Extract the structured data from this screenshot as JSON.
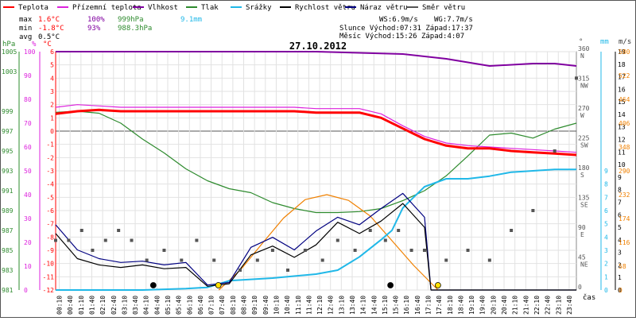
{
  "chart_data": {
    "type": "line",
    "title": "27.10.2012",
    "time_label": "čas",
    "x_ticks": [
      "00:10",
      "00:40",
      "01:10",
      "01:40",
      "02:10",
      "02:40",
      "03:10",
      "03:40",
      "04:10",
      "04:40",
      "05:10",
      "05:40",
      "06:10",
      "06:40",
      "07:10",
      "07:40",
      "08:10",
      "08:40",
      "09:10",
      "09:40",
      "10:10",
      "10:40",
      "11:10",
      "11:40",
      "12:10",
      "12:40",
      "13:10",
      "13:40",
      "14:10",
      "14:40",
      "15:10",
      "15:40",
      "16:10",
      "16:40",
      "17:10",
      "17:40",
      "18:10",
      "18:40",
      "19:10",
      "19:40",
      "20:10",
      "20:40",
      "21:10",
      "21:40",
      "22:10",
      "22:40",
      "23:10",
      "23:40"
    ],
    "legend": [
      {
        "label": "Teplota",
        "color": "#ff0000"
      },
      {
        "label": "Přízemní teplota",
        "color": "#dd22dd"
      },
      {
        "label": "Vlhkost",
        "color": "#8000a0"
      },
      {
        "label": "Tlak",
        "color": "#2e8b2e"
      },
      {
        "label": "Srážky",
        "color": "#20b8e8"
      },
      {
        "label": "Rychlost větru",
        "color": "#000000"
      },
      {
        "label": "Náraz větru",
        "color": "#000080"
      },
      {
        "label": "Směr větru",
        "color": "#555555"
      }
    ],
    "stats": {
      "max": {
        "label": "max",
        "temp": "1.6°C",
        "hum": "100%",
        "press": "999hPa",
        "rain": "9.1mm"
      },
      "min": {
        "label": "min",
        "temp": "-1.8°C",
        "hum": "93%",
        "press": "988.3hPa"
      },
      "avg": {
        "label": "avg",
        "temp": "0.5°C"
      },
      "ws": "WS:6.9m/s",
      "wg": "WG:7.7m/s",
      "sun": "Slunce Východ:07:31  Západ:17:37",
      "moon": "Měsíc  Východ:15:26  Západ:4:07"
    },
    "axes": {
      "hpa": {
        "unit": "hPa",
        "ticks": [
          "1005",
          "1003",
          "999",
          "997",
          "995",
          "993",
          "991",
          "989",
          "987",
          "985",
          "983",
          "981"
        ]
      },
      "pct": {
        "unit": "%",
        "ticks": [
          "100",
          "90",
          "80",
          "70",
          "60",
          "50",
          "40",
          "30",
          "20",
          "10",
          "0"
        ]
      },
      "temp": {
        "unit": "°C",
        "ticks": [
          "6",
          "5",
          "4",
          "3",
          "2",
          "1",
          "0",
          "-1",
          "-2",
          "-3",
          "-4",
          "-5",
          "-6",
          "-7",
          "-8",
          "-9",
          "-10",
          "-11",
          "-12"
        ]
      },
      "deg": {
        "unit": "°",
        "ticks": [
          {
            "v": "360",
            "d": "N"
          },
          {
            "v": "315",
            "d": "NW"
          },
          {
            "v": "270",
            "d": "W"
          },
          {
            "v": "225",
            "d": "SW"
          },
          {
            "v": "180",
            "d": "S"
          },
          {
            "v": "135",
            "d": "SE"
          },
          {
            "v": "90",
            "d": "E"
          },
          {
            "v": "45",
            "d": "NE"
          },
          {
            "v": "0",
            "d": ""
          }
        ]
      },
      "mm": {
        "unit": "mm",
        "ticks": [
          "9",
          "8",
          "7",
          "6",
          "5",
          "4",
          "3",
          "2",
          "1",
          "0"
        ]
      },
      "ms": {
        "unit": "m/s",
        "ticks": [
          "19",
          "18",
          "17",
          "16",
          "15",
          "14",
          "13",
          "12",
          "11",
          "10",
          "9",
          "8",
          "7",
          "6",
          "5",
          "4",
          "3",
          "2",
          "1",
          "0"
        ]
      },
      "wm2": {
        "unit": "W/m²",
        "ticks": [
          "580",
          "522",
          "464",
          "406",
          "348",
          "290",
          "232",
          "174",
          "116",
          "58",
          "0"
        ]
      }
    },
    "series": [
      {
        "name": "Teplota",
        "color": "#ff0000",
        "x": [
          0,
          1,
          2,
          3,
          4,
          5,
          6,
          7,
          8,
          9,
          10,
          11,
          12,
          13,
          14,
          15,
          16,
          17,
          18,
          19,
          20,
          21,
          22,
          23,
          24
        ],
        "values": [
          1.3,
          1.5,
          1.6,
          1.5,
          1.5,
          1.5,
          1.5,
          1.5,
          1.5,
          1.5,
          1.5,
          1.5,
          1.4,
          1.4,
          1.4,
          1.0,
          0.2,
          -0.6,
          -1.1,
          -1.3,
          -1.3,
          -1.5,
          -1.6,
          -1.7,
          -1.8
        ]
      },
      {
        "name": "Přízemní teplota",
        "color": "#dd22dd",
        "x": [
          0,
          1,
          2,
          3,
          4,
          5,
          6,
          7,
          8,
          9,
          10,
          11,
          12,
          13,
          14,
          15,
          16,
          17,
          18,
          19,
          20,
          21,
          22,
          23,
          24
        ],
        "values": [
          1.8,
          2.0,
          1.9,
          1.8,
          1.8,
          1.8,
          1.8,
          1.8,
          1.8,
          1.8,
          1.8,
          1.8,
          1.7,
          1.7,
          1.7,
          1.3,
          0.4,
          -0.4,
          -0.9,
          -1.1,
          -1.2,
          -1.3,
          -1.4,
          -1.5,
          -1.6
        ]
      },
      {
        "name": "Vlhkost",
        "color": "#8000a0",
        "x": [
          0,
          4,
          8,
          12,
          16,
          18,
          20,
          22,
          23,
          24
        ],
        "values": [
          100,
          100,
          100,
          100,
          99,
          97,
          94,
          95,
          95,
          94
        ]
      },
      {
        "name": "Tlak",
        "color": "#2e8b2e",
        "x": [
          0,
          1,
          2,
          3,
          4,
          5,
          6,
          7,
          8,
          9,
          10,
          11,
          12,
          13,
          14,
          15,
          16,
          17,
          18,
          19,
          20,
          21,
          22,
          23,
          24
        ],
        "values": [
          998.9,
          999.0,
          998.8,
          997.8,
          996.2,
          994.8,
          993.2,
          992.0,
          991.2,
          990.8,
          989.8,
          989.2,
          988.8,
          988.8,
          988.9,
          989.2,
          990.0,
          991.0,
          992.5,
          994.5,
          996.6,
          996.8,
          996.3,
          997.2,
          997.8
        ]
      },
      {
        "name": "Srážky",
        "color": "#20b8e8",
        "x": [
          0,
          4,
          6,
          7,
          8,
          10,
          12,
          13,
          14,
          15,
          15.5,
          16,
          16.5,
          17,
          18,
          19,
          20,
          21,
          22,
          23,
          24
        ],
        "values": [
          0,
          0,
          0.1,
          0.2,
          0.7,
          0.9,
          1.2,
          1.5,
          2.5,
          3.8,
          4.5,
          6.2,
          7.0,
          7.8,
          8.4,
          8.4,
          8.6,
          8.9,
          9.0,
          9.1,
          9.1
        ]
      },
      {
        "name": "Rychlost větru",
        "color": "#000000",
        "x": [
          0,
          1,
          2,
          3,
          4,
          5,
          6,
          7,
          8,
          9,
          10,
          11,
          12,
          13,
          14,
          15,
          16,
          17,
          17.3,
          18,
          24
        ],
        "values": [
          4.5,
          2.5,
          2.0,
          1.8,
          2.0,
          1.7,
          1.8,
          0.3,
          0.5,
          2.8,
          3.5,
          2.6,
          3.6,
          5.4,
          4.5,
          5.5,
          6.9,
          5.0,
          0,
          0,
          0
        ]
      },
      {
        "name": "Náraz větru",
        "color": "#000080",
        "x": [
          0,
          1,
          2,
          3,
          4,
          5,
          6,
          7,
          8,
          9,
          10,
          11,
          12,
          13,
          14,
          15,
          16,
          17,
          17.3,
          18,
          24
        ],
        "values": [
          5.2,
          3.2,
          2.5,
          2.2,
          2.3,
          2.0,
          2.2,
          0.4,
          0.6,
          3.4,
          4.2,
          3.2,
          4.7,
          5.8,
          5.2,
          6.5,
          7.7,
          5.8,
          0,
          0,
          0
        ]
      },
      {
        "name": "Slunce",
        "color": "#f08000",
        "x": [
          7.52,
          8.5,
          9.5,
          10.5,
          11.5,
          12.5,
          13.5,
          14.5,
          15.5,
          16.5,
          17.62
        ],
        "values": [
          0,
          48,
          112,
          175,
          220,
          232,
          218,
          180,
          120,
          60,
          0
        ]
      }
    ],
    "wind_direction": {
      "name": "Směr větru",
      "color": "#555555",
      "x": [
        0,
        0.6,
        1.2,
        1.7,
        2.3,
        2.9,
        3.5,
        4.2,
        5.0,
        5.8,
        6.5,
        7.3,
        8.5,
        9.3,
        10.0,
        10.7,
        11.5,
        12.3,
        13.0,
        13.8,
        14.5,
        15.2,
        15.8,
        16.4,
        17.0,
        18.0,
        19.0,
        20.0,
        21.0,
        22.0,
        23.0,
        24.0
      ],
      "values": [
        75,
        75,
        90,
        60,
        75,
        90,
        75,
        45,
        60,
        45,
        75,
        45,
        30,
        45,
        60,
        30,
        60,
        45,
        75,
        60,
        90,
        75,
        90,
        60,
        60,
        45,
        60,
        45,
        90,
        120,
        210,
        320
      ]
    },
    "markers": [
      {
        "x": 4.5,
        "color": "#000000"
      },
      {
        "x": 7.5,
        "color": "#ffe000"
      },
      {
        "x": 15.43,
        "color": "#000000"
      },
      {
        "x": 17.62,
        "color": "#ffe000"
      }
    ]
  }
}
